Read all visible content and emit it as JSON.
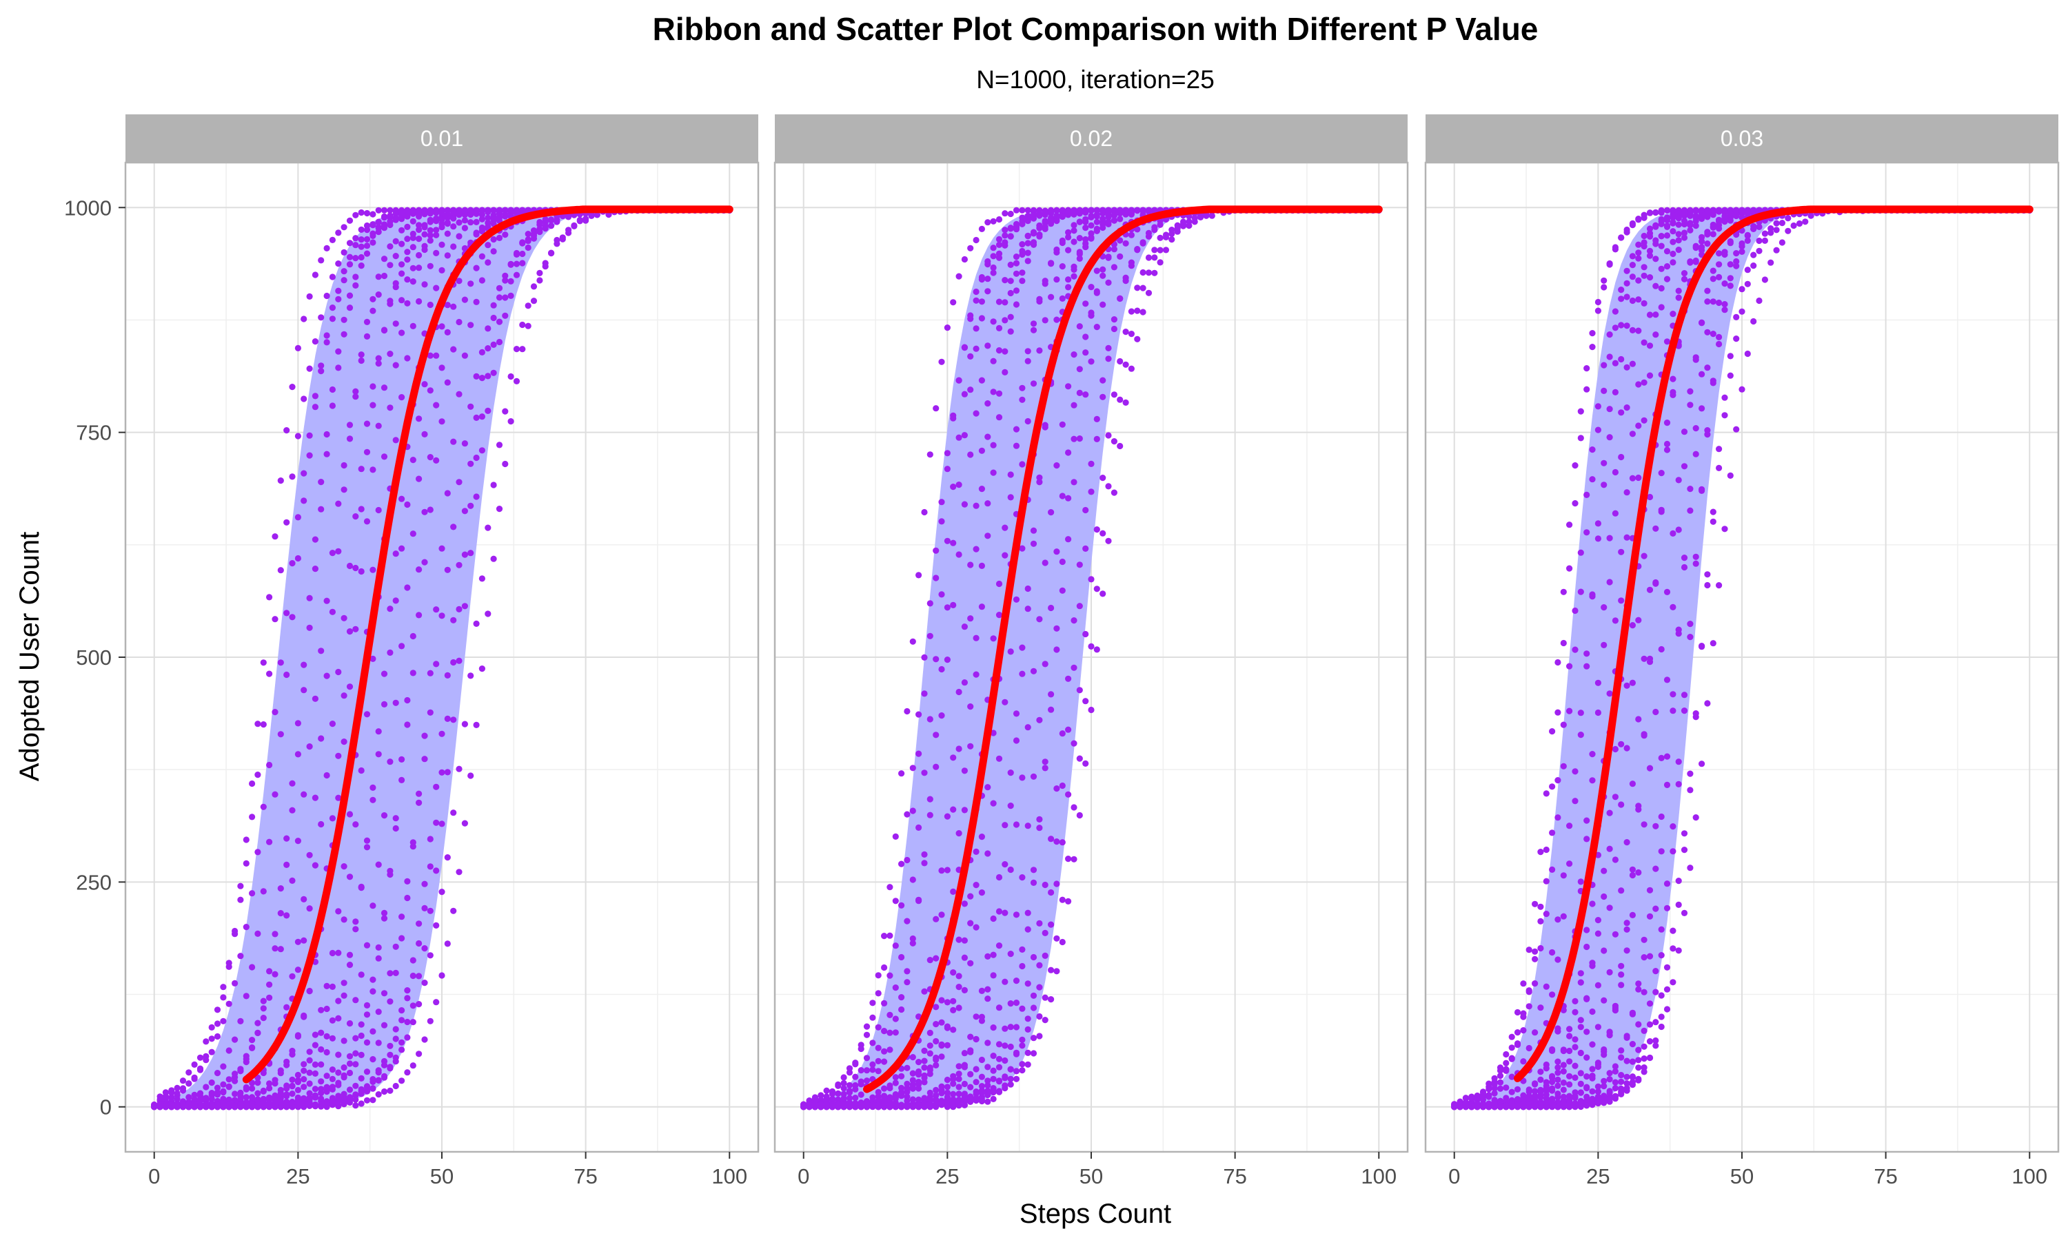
{
  "chart_data": {
    "type": "scatter",
    "title": "Ribbon and Scatter Plot Comparison with Different P Value",
    "subtitle": "N=1000, iteration=25",
    "xlabel": "Steps Count",
    "ylabel": "Adopted User Count",
    "xlim": [
      -5,
      105
    ],
    "ylim": [
      -50,
      1050
    ],
    "x_ticks": [
      0,
      25,
      50,
      75,
      100
    ],
    "x_tick_labels": [
      "0",
      "25",
      "50",
      "75",
      "100"
    ],
    "y_ticks": [
      0,
      250,
      500,
      750,
      1000
    ],
    "y_tick_labels": [
      "0",
      "250",
      "500",
      "750",
      "1000"
    ],
    "n_total": 1000,
    "steps": 100,
    "iterations": 25,
    "grid": true,
    "legend": "none",
    "colors": {
      "ribbon": "#b3b3ff",
      "points": "#a020f0",
      "mean_line": "#ff0000",
      "strip_bg": "#b3b3b3",
      "strip_text": "#ffffff",
      "panel_border": "#b3b3b3",
      "grid_major": "#dedede",
      "grid_minor": "#efefef",
      "text": "#000000",
      "tick_text": "#4d4d4d"
    },
    "panels": [
      {
        "facet": "0.01",
        "mean_curve": {
          "midpoint": 37.0,
          "steepness": 0.165,
          "start": 16
        },
        "ribbon": {
          "lower": {
            "midpoint": 54.0,
            "steepness": 0.25
          },
          "upper": {
            "midpoint": 21.5,
            "steepness": 0.25
          }
        },
        "points_midpoints": {
          "min": 19.0,
          "max": 57.0,
          "steepness": 0.25
        }
      },
      {
        "facet": "0.02",
        "mean_curve": {
          "midpoint": 34.0,
          "steepness": 0.17,
          "start": 11
        },
        "ribbon": {
          "lower": {
            "midpoint": 48.5,
            "steepness": 0.28
          },
          "upper": {
            "midpoint": 21.0,
            "steepness": 0.28
          }
        },
        "points_midpoints": {
          "min": 19.0,
          "max": 51.0,
          "steepness": 0.28
        }
      },
      {
        "facet": "0.03",
        "mean_curve": {
          "midpoint": 29.0,
          "steepness": 0.19,
          "start": 11
        },
        "ribbon": {
          "lower": {
            "midpoint": 41.5,
            "steepness": 0.3
          },
          "upper": {
            "midpoint": 20.0,
            "steepness": 0.3
          }
        },
        "points_midpoints": {
          "min": 18.0,
          "max": 44.5,
          "steepness": 0.3
        }
      }
    ]
  }
}
